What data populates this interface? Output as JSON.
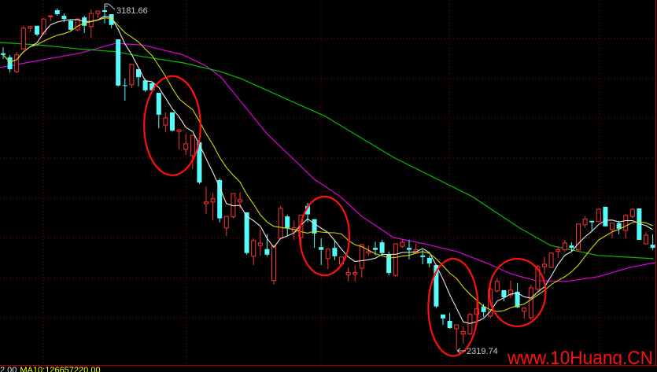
{
  "chart_data": {
    "type": "candlestick",
    "title": "",
    "ylim": [
      2290,
      3200
    ],
    "grid": true,
    "up_color": "#ff3232",
    "down_color": "#54fcfc",
    "candles_ohlc": [
      [
        3063,
        3078,
        3049,
        3059
      ],
      [
        3053,
        3059,
        3015,
        3023
      ],
      [
        3017,
        3067,
        3013,
        3059
      ],
      [
        3074,
        3132,
        3072,
        3126
      ],
      [
        3126,
        3130,
        3116,
        3130
      ],
      [
        3132,
        3132,
        3106,
        3110
      ],
      [
        3112,
        3151,
        3110,
        3149
      ],
      [
        3155,
        3157,
        3143,
        3157
      ],
      [
        3171,
        3176,
        3157,
        3161
      ],
      [
        3157,
        3163,
        3141,
        3149
      ],
      [
        3145,
        3145,
        3118,
        3122
      ],
      [
        3122,
        3151,
        3118,
        3149
      ],
      [
        3153,
        3157,
        3114,
        3132
      ],
      [
        3130,
        3173,
        3102,
        3163
      ],
      [
        3163,
        3169,
        3151,
        3169
      ],
      [
        3171,
        3181.66,
        3138,
        3167
      ],
      [
        3161,
        3161,
        3126,
        3134
      ],
      [
        3098,
        3098,
        2980,
        2982
      ],
      [
        2983,
        3000,
        2944,
        2981
      ],
      [
        2984,
        3035,
        2976,
        3035
      ],
      [
        3023,
        3023,
        2980,
        3003
      ],
      [
        2995,
        2999,
        2966,
        2970
      ],
      [
        2988,
        2990,
        2966,
        2970
      ],
      [
        2964,
        2964,
        2875,
        2909
      ],
      [
        2883,
        2915,
        2865,
        2901
      ],
      [
        2915,
        2915,
        2867,
        2869
      ],
      [
        2867,
        2871,
        2822,
        2871
      ],
      [
        2822,
        2861,
        2808,
        2836
      ],
      [
        2806,
        2857,
        2773,
        2857
      ],
      [
        2840,
        2840,
        2735,
        2739
      ],
      [
        2686,
        2729,
        2660,
        2690
      ],
      [
        2690,
        2712,
        2645,
        2698
      ],
      [
        2745,
        2749,
        2639,
        2649
      ],
      [
        2625,
        2654,
        2605,
        2654
      ],
      [
        2653,
        2711,
        2649,
        2711
      ],
      [
        2690,
        2714,
        2674,
        2696
      ],
      [
        2664,
        2664,
        2558,
        2562
      ],
      [
        2554,
        2599,
        2532,
        2593
      ],
      [
        2581,
        2621,
        2556,
        2587
      ],
      [
        2572,
        2609,
        2554,
        2558
      ],
      [
        2493,
        2581,
        2483,
        2581
      ],
      [
        2599,
        2680,
        2599,
        2674
      ],
      [
        2654,
        2658,
        2605,
        2625
      ],
      [
        2615,
        2643,
        2595,
        2625
      ],
      [
        2601,
        2657,
        2581,
        2657
      ],
      [
        2680,
        2688,
        2639,
        2659
      ],
      [
        2647,
        2647,
        2575,
        2611
      ],
      [
        2577,
        2599,
        2532,
        2570
      ],
      [
        2548,
        2572,
        2522,
        2572
      ],
      [
        2575,
        2595,
        2544,
        2554
      ],
      [
        2534,
        2552,
        2528,
        2552
      ],
      [
        2507,
        2526,
        2491,
        2513
      ],
      [
        2509,
        2530,
        2491,
        2513
      ],
      [
        2524,
        2585,
        2501,
        2583
      ],
      [
        2562,
        2581,
        2556,
        2566
      ],
      [
        2575,
        2591,
        2556,
        2570
      ],
      [
        2589,
        2595,
        2556,
        2562
      ],
      [
        2558,
        2566,
        2506,
        2512
      ],
      [
        2506,
        2587,
        2503,
        2585
      ],
      [
        2579,
        2595,
        2575,
        2589
      ],
      [
        2575,
        2595,
        2546,
        2570
      ],
      [
        2562,
        2585,
        2560,
        2570
      ],
      [
        2556,
        2570,
        2534,
        2552
      ],
      [
        2550,
        2556,
        2526,
        2536
      ],
      [
        2532,
        2532,
        2424,
        2428
      ],
      [
        2408,
        2408,
        2382,
        2398
      ],
      [
        2392,
        2412,
        2372,
        2374
      ],
      [
        2372,
        2382,
        2319.74,
        2382
      ],
      [
        2359,
        2378,
        2335,
        2365
      ],
      [
        2359,
        2412,
        2357,
        2408
      ],
      [
        2408,
        2441,
        2398,
        2422
      ],
      [
        2428,
        2434,
        2402,
        2414
      ],
      [
        2404,
        2481,
        2398,
        2471
      ],
      [
        2467,
        2499,
        2463,
        2491
      ],
      [
        2469,
        2469,
        2441,
        2451
      ],
      [
        2457,
        2493,
        2449,
        2469
      ],
      [
        2465,
        2487,
        2424,
        2426
      ],
      [
        2416,
        2424,
        2398,
        2424
      ],
      [
        2400,
        2483,
        2394,
        2475
      ],
      [
        2471,
        2532,
        2467,
        2528
      ],
      [
        2528,
        2552,
        2510,
        2534
      ],
      [
        2526,
        2562,
        2526,
        2562
      ],
      [
        2566,
        2579,
        2550,
        2570
      ],
      [
        2570,
        2595,
        2566,
        2587
      ],
      [
        2581,
        2589,
        2566,
        2575
      ],
      [
        2570,
        2635,
        2566,
        2635
      ],
      [
        2633,
        2654,
        2625,
        2647
      ],
      [
        2643,
        2643,
        2617,
        2639
      ],
      [
        2641,
        2672,
        2641,
        2672
      ],
      [
        2678,
        2678,
        2629,
        2629
      ],
      [
        2621,
        2637,
        2599,
        2637
      ],
      [
        2637,
        2643,
        2609,
        2623
      ],
      [
        2619,
        2660,
        2599,
        2656
      ],
      [
        2654,
        2674,
        2649,
        2672
      ],
      [
        2674,
        2674,
        2595,
        2595
      ],
      [
        2585,
        2615,
        2585,
        2607
      ],
      [
        2583,
        2609,
        2570,
        2575
      ]
    ],
    "moving_averages": [
      {
        "period": 5,
        "color": "#e8e8e8"
      },
      {
        "period": 10,
        "color": "#d8d800"
      }
    ],
    "long_averages": [
      {
        "color": "#e000e0",
        "points": [
          [
            -0.5,
            3027
          ],
          [
            5.3,
            3045
          ],
          [
            11.2,
            3063
          ],
          [
            16.6,
            3088
          ],
          [
            20.5,
            3084
          ],
          [
            26.6,
            3059
          ],
          [
            29.8,
            3033
          ],
          [
            32.1,
            3005
          ],
          [
            39,
            2861
          ],
          [
            46,
            2747
          ],
          [
            49.8,
            2704
          ],
          [
            53,
            2654
          ],
          [
            57.7,
            2601
          ],
          [
            62.3,
            2585
          ],
          [
            67,
            2566
          ],
          [
            71.6,
            2536
          ],
          [
            75,
            2510
          ],
          [
            78.6,
            2493
          ],
          [
            83.3,
            2491
          ],
          [
            88,
            2503
          ],
          [
            92.6,
            2526
          ],
          [
            96.4,
            2538
          ]
        ]
      },
      {
        "color": "#00c000",
        "points": [
          [
            -0.5,
            3090
          ],
          [
            5.3,
            3084
          ],
          [
            11.2,
            3074
          ],
          [
            16.6,
            3067
          ],
          [
            20.5,
            3055
          ],
          [
            26.6,
            3039
          ],
          [
            32.1,
            3017
          ],
          [
            35.2,
            2999
          ],
          [
            47.6,
            2905
          ],
          [
            57.7,
            2802
          ],
          [
            69.3,
            2704
          ],
          [
            71.6,
            2678
          ],
          [
            76.3,
            2625
          ],
          [
            80.9,
            2581
          ],
          [
            87.9,
            2556
          ],
          [
            96.1,
            2548
          ]
        ]
      }
    ],
    "annotations": {
      "high_label": "3181.66",
      "low_label": "2319.74",
      "circled_candles": [
        [
          22,
          28
        ],
        [
          45,
          50
        ],
        [
          64,
          69
        ],
        [
          73,
          79
        ]
      ]
    },
    "gridlines_price": [
      3100,
      3000,
      2900,
      2800,
      2700,
      2600,
      2500,
      2400
    ]
  },
  "watermark": "www.10Huang.CN",
  "status": {
    "value": "2.00",
    "ma10": "MA10:126657220.00"
  }
}
